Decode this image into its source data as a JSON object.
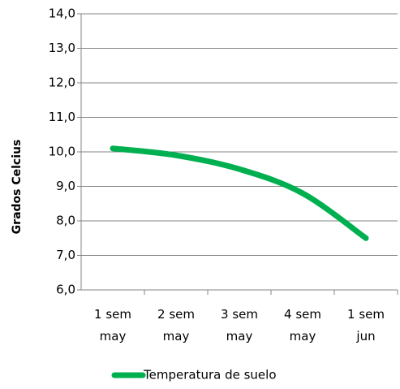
{
  "chart_data": {
    "type": "line",
    "y_label": "Grados Celcius",
    "categories": [
      "1 sem may",
      "2 sem may",
      "3 sem may",
      "4 sem may",
      "1 sem jun"
    ],
    "series": [
      {
        "name": "Temperatura de suelo",
        "color": "#00b050",
        "values": [
          10.1,
          9.9,
          9.5,
          8.8,
          7.5
        ]
      }
    ],
    "ylim": [
      6,
      14
    ],
    "yticks": [
      {
        "value": 6,
        "label": "6,0"
      },
      {
        "value": 7,
        "label": "7,0"
      },
      {
        "value": 8,
        "label": "8,0"
      },
      {
        "value": 9,
        "label": "9,0"
      },
      {
        "value": 10,
        "label": "10,0"
      },
      {
        "value": 11,
        "label": "11,0"
      },
      {
        "value": 12,
        "label": "12,0"
      },
      {
        "value": 13,
        "label": "13,0"
      },
      {
        "value": 14,
        "label": "14,0"
      }
    ],
    "grid": true,
    "legend": "bottom"
  }
}
